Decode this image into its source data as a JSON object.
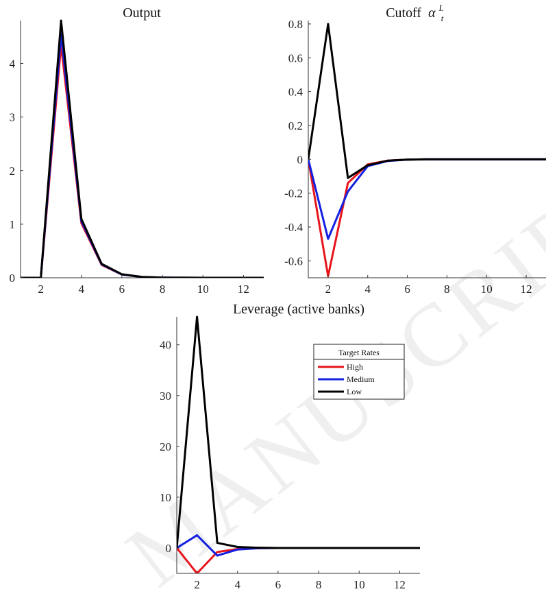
{
  "chart_data": [
    {
      "id": "output",
      "type": "line",
      "title": "Output",
      "x": [
        1,
        2,
        3,
        4,
        5,
        6,
        7,
        8,
        9,
        10,
        11,
        12,
        13
      ],
      "xlim": [
        1,
        13
      ],
      "ylim": [
        0,
        4.8
      ],
      "xticks": [
        2,
        4,
        6,
        8,
        10,
        12
      ],
      "yticks": [
        0,
        1,
        2,
        3,
        4
      ],
      "series": [
        {
          "color": "#e8141c",
          "values": [
            0,
            0,
            4.35,
            1.02,
            0.24,
            0.06,
            0.015,
            0.004,
            0.001,
            0,
            0,
            0,
            0
          ]
        },
        {
          "color": "#1420e0",
          "values": [
            0,
            0,
            4.55,
            1.06,
            0.25,
            0.06,
            0.015,
            0.004,
            0.001,
            0,
            0,
            0,
            0
          ]
        },
        {
          "color": "#000000",
          "values": [
            0,
            0,
            4.8,
            1.1,
            0.26,
            0.065,
            0.016,
            0.004,
            0.001,
            0,
            0,
            0,
            0
          ]
        }
      ]
    },
    {
      "id": "cutoff",
      "type": "line",
      "title": "Cutoff",
      "title_math": {
        "symbol": "α",
        "sup": "L",
        "sub": "t"
      },
      "x": [
        1,
        2,
        3,
        4,
        5,
        6,
        7,
        8,
        9,
        10,
        11,
        12,
        13
      ],
      "xlim": [
        1,
        13
      ],
      "ylim": [
        -0.7,
        0.82
      ],
      "xticks": [
        2,
        4,
        6,
        8,
        10,
        12
      ],
      "yticks": [
        -0.6,
        -0.4,
        -0.2,
        0,
        0.2,
        0.4,
        0.6,
        0.8
      ],
      "ytick_labels": [
        "-0.6",
        "-0.4",
        "-0.2",
        "0",
        "0.2",
        "0.4",
        "0.6",
        "0.8"
      ],
      "series": [
        {
          "color": "#e8141c",
          "values": [
            0,
            -0.69,
            -0.14,
            -0.03,
            -0.008,
            -0.002,
            0,
            0,
            0,
            0,
            0,
            0,
            0
          ]
        },
        {
          "color": "#1420e0",
          "values": [
            0,
            -0.47,
            -0.19,
            -0.04,
            -0.01,
            -0.002,
            0,
            0,
            0,
            0,
            0,
            0,
            0
          ]
        },
        {
          "color": "#000000",
          "values": [
            0,
            0.8,
            -0.11,
            -0.035,
            -0.008,
            -0.002,
            0,
            0,
            0,
            0,
            0,
            0,
            0
          ]
        }
      ]
    },
    {
      "id": "leverage",
      "type": "line",
      "title": "Leverage (active banks)",
      "x": [
        1,
        2,
        3,
        4,
        5,
        6,
        7,
        8,
        9,
        10,
        11,
        12,
        13
      ],
      "xlim": [
        1,
        13
      ],
      "ylim": [
        -5,
        45.5
      ],
      "xticks": [
        2,
        4,
        6,
        8,
        10,
        12
      ],
      "yticks": [
        0,
        10,
        20,
        30,
        40
      ],
      "series": [
        {
          "name": "High",
          "color": "#e8141c",
          "values": [
            0,
            -5,
            -0.8,
            -0.2,
            -0.05,
            0,
            0,
            0,
            0,
            0,
            0,
            0,
            0
          ]
        },
        {
          "name": "Medium",
          "color": "#1420e0",
          "values": [
            0,
            2.5,
            -1.5,
            -0.3,
            -0.05,
            0,
            0,
            0,
            0,
            0,
            0,
            0,
            0
          ]
        },
        {
          "name": "Low",
          "color": "#000000",
          "values": [
            0,
            45.5,
            1,
            0.2,
            0.05,
            0,
            0,
            0,
            0,
            0,
            0,
            0,
            0
          ]
        }
      ],
      "legend": {
        "title": "Target Rates",
        "placement": "top-right",
        "entries": [
          "High",
          "Medium",
          "Low"
        ]
      }
    }
  ],
  "watermark": "MANUSCRIPT"
}
